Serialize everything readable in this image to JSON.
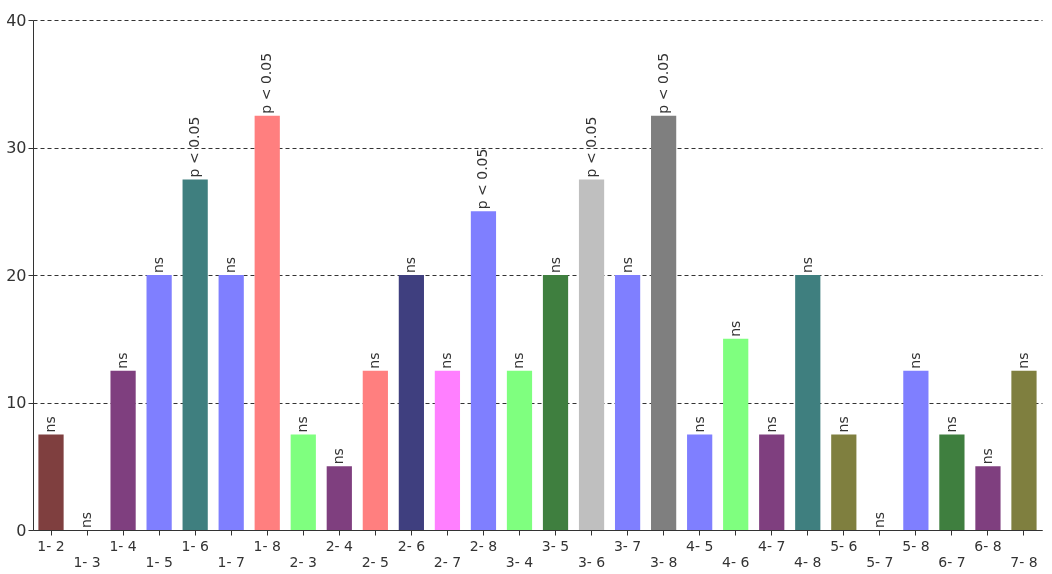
{
  "chart_data": {
    "type": "bar",
    "categories": [
      "1- 2",
      "1- 3",
      "1- 4",
      "1- 5",
      "1- 6",
      "1- 7",
      "1- 8",
      "2- 3",
      "2- 4",
      "2- 5",
      "2- 6",
      "2- 7",
      "2- 8",
      "3- 4",
      "3- 5",
      "3- 6",
      "3- 7",
      "3- 8",
      "4- 5",
      "4- 6",
      "4- 7",
      "4- 8",
      "5- 6",
      "5- 7",
      "5- 8",
      "6- 7",
      "6- 8",
      "7- 8"
    ],
    "values": [
      7.5,
      0,
      12.5,
      20,
      27.5,
      20,
      32.5,
      7.5,
      5,
      12.5,
      20,
      12.5,
      25,
      12.5,
      20,
      27.5,
      20,
      32.5,
      7.5,
      15,
      7.5,
      20,
      7.5,
      0,
      12.5,
      7.5,
      5,
      12.5
    ],
    "colors": [
      "#7f3f3f",
      "#7f7f7f",
      "#7f3f7f",
      "#7f7fff",
      "#3f7f7f",
      "#7f7fff",
      "#ff7f7f",
      "#7fff7f",
      "#7f3f7f",
      "#ff7f7f",
      "#3f3f7f",
      "#ff7fff",
      "#7f7fff",
      "#7fff7f",
      "#3f7f3f",
      "#bfbfbf",
      "#7f7fff",
      "#7f7f7f",
      "#7f7fff",
      "#7fff7f",
      "#7f3f7f",
      "#3f7f7f",
      "#7f7f3f",
      "#7f7f7f",
      "#7f7fff",
      "#3f7f3f",
      "#7f3f7f",
      "#7f7f3f"
    ],
    "value_labels": [
      "ns",
      "ns",
      "ns",
      "ns",
      "p < 0.05",
      "ns",
      "p < 0.05",
      "ns",
      "ns",
      "ns",
      "ns",
      "ns",
      "p < 0.05",
      "ns",
      "ns",
      "p < 0.05",
      "ns",
      "p < 0.05",
      "ns",
      "ns",
      "ns",
      "ns",
      "ns",
      "ns",
      "ns",
      "ns",
      "ns",
      "ns"
    ],
    "ylim": [
      0,
      40
    ],
    "yticks": [
      0,
      10,
      20,
      30,
      40
    ],
    "grid": "y"
  }
}
